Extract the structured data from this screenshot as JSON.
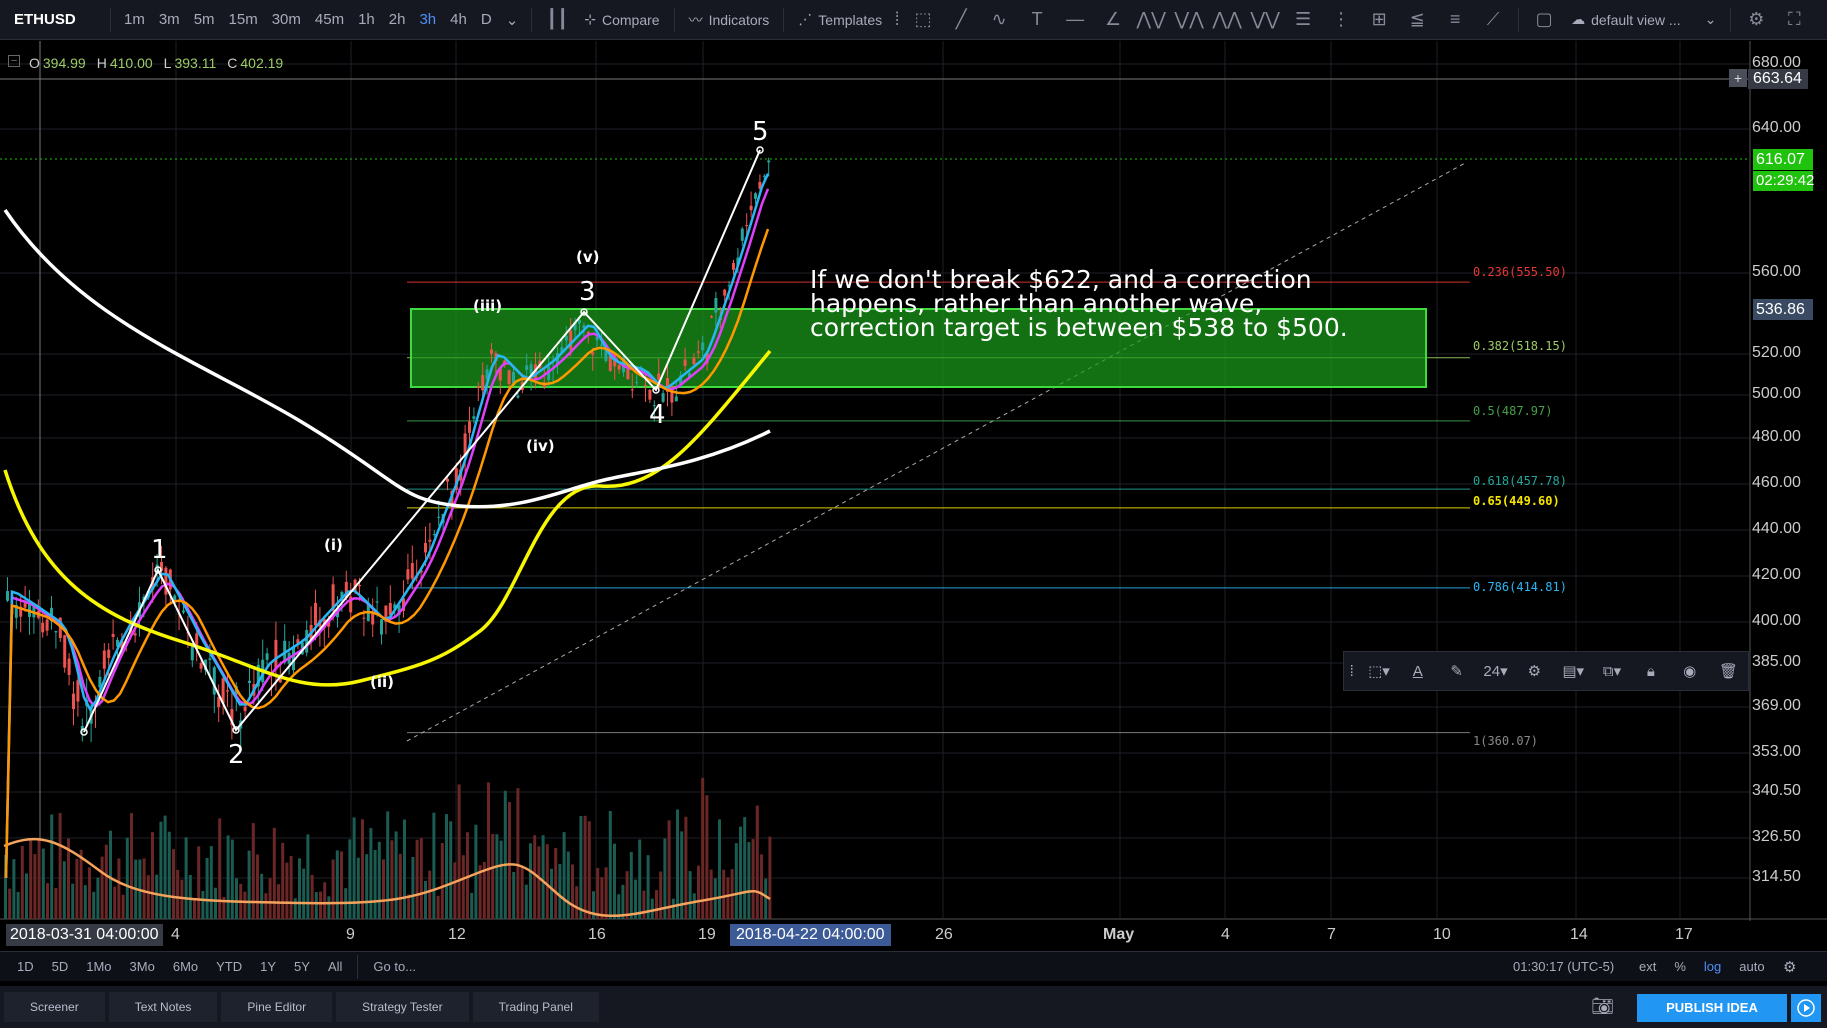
{
  "toolbar": {
    "symbol": "ETHUSD",
    "intervals": [
      "1m",
      "3m",
      "5m",
      "15m",
      "30m",
      "45m",
      "1h",
      "2h",
      "3h",
      "4h",
      "D"
    ],
    "active_interval": "3h",
    "compare_label": "Compare",
    "indicators_label": "Indicators",
    "templates_label": "Templates",
    "default_view_label": "default view ..."
  },
  "ohlc": {
    "o_label": "O",
    "o": "394.99",
    "h_label": "H",
    "h": "410.00",
    "l_label": "L",
    "l": "393.11",
    "c_label": "C",
    "c": "402.19"
  },
  "price_axis": {
    "labels": [
      "680.00",
      "640.00",
      "560.00",
      "520.00",
      "500.00",
      "480.00",
      "460.00",
      "440.00",
      "420.00",
      "400.00",
      "385.00",
      "369.00",
      "353.00",
      "340.50",
      "326.50",
      "314.50"
    ],
    "crosshair_price": "663.64",
    "last_price": "616.07",
    "countdown": "02:29:42",
    "marker_price": "536.86"
  },
  "time_axis": {
    "labels": [
      "4",
      "9",
      "12",
      "16",
      "19",
      "26",
      "May",
      "4",
      "7",
      "10",
      "14",
      "17"
    ],
    "start_label": "2018-03-31 04:00:00",
    "cursor_label": "2018-04-22 04:00:00"
  },
  "fib_levels": [
    {
      "label": "0.236(555.50)",
      "color": "#e53935"
    },
    {
      "label": "0.382(518.15)",
      "color": "#9ccc65"
    },
    {
      "label": "0.5(487.97)",
      "color": "#43a047"
    },
    {
      "label": "0.618(457.78)",
      "color": "#26a69a"
    },
    {
      "label": "0.65(449.60)",
      "color": "#f7e400"
    },
    {
      "label": "0.786(414.81)",
      "color": "#29b6f6"
    },
    {
      "label": "1(360.07)",
      "color": "#888888"
    }
  ],
  "waves": {
    "w1": "1",
    "w2": "2",
    "w3": "3",
    "w4": "4",
    "w5": "5",
    "wi": "(i)",
    "wii": "(ii)",
    "wiii": "(iii)",
    "wiv": "(iv)",
    "wv": "(v)"
  },
  "annotation": "If we don't break $622, and a correction\nhappens, rather than another wave,\ncorrection target is between $538 to $500.",
  "drawing_toolbar": {
    "font_size": "24"
  },
  "bottom_ranges": [
    "1D",
    "5D",
    "1Mo",
    "3Mo",
    "6Mo",
    "YTD",
    "1Y",
    "5Y",
    "All"
  ],
  "goto_label": "Go to...",
  "clock": "01:30:17 (UTC-5)",
  "scale_options": [
    "ext",
    "%",
    "log",
    "auto"
  ],
  "footer_tabs": [
    "Screener",
    "Text Notes",
    "Pine Editor",
    "Strategy Tester",
    "Trading Panel"
  ],
  "publish_label": "PUBLISH IDEA",
  "colors": {
    "accent": "#2196f3",
    "up": "#26a69a",
    "down": "#ef5350",
    "box": "#1a9c1a"
  }
}
